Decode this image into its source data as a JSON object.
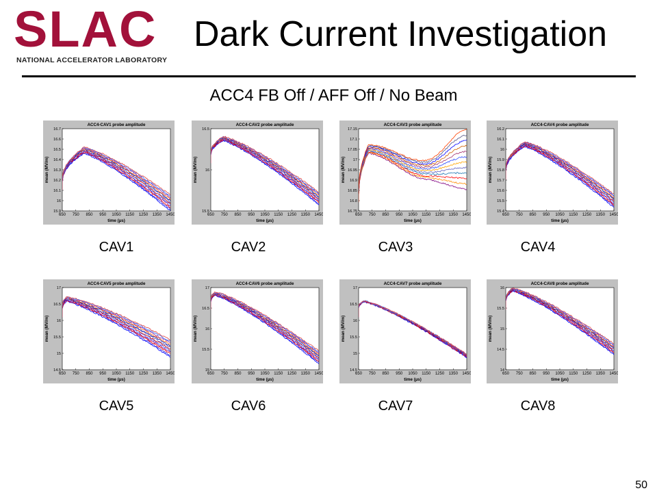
{
  "logo": {
    "word": "SLAC",
    "subtitle": "NATIONAL ACCELERATOR LABORATORY",
    "color": "#a2113a"
  },
  "slide": {
    "title": "Dark Current Investigation",
    "subtitle": "ACC4 FB Off / AFF Off / No Beam",
    "page_number": "50"
  },
  "colors": {
    "panel_bg": "#c0c0c0",
    "plot_bg": "#ffffff"
  },
  "chart_data": [
    {
      "type": "line",
      "title": "ACC4-CAV1 probe amplitude",
      "label": "CAV1",
      "xlabel": "time (µs)",
      "ylabel": "mean (MV/m)",
      "xlim": [
        650,
        1450
      ],
      "ylim": [
        15.9,
        16.7
      ],
      "xticks": [
        650,
        750,
        850,
        950,
        1050,
        1150,
        1250,
        1350,
        1450
      ],
      "yticks": [
        15.9,
        16,
        16.1,
        16.2,
        16.3,
        16.4,
        16.5,
        16.6,
        16.7
      ],
      "yticklabels": [
        "15.9",
        "16",
        "16.1",
        "16.2",
        "16.3",
        "16.4",
        "16.5",
        "16.6",
        "16.7"
      ],
      "start": 16.2,
      "peak_x": 810,
      "peak": 16.49,
      "end": 15.98,
      "spread": 0.06
    },
    {
      "type": "line",
      "title": "ACC4-CAV2 probe amplitude",
      "label": "CAV2",
      "xlabel": "time (µs)",
      "ylabel": "mean (MV/m)",
      "xlim": [
        650,
        1450
      ],
      "ylim": [
        15.5,
        16.5
      ],
      "xticks": [
        650,
        750,
        850,
        950,
        1050,
        1150,
        1250,
        1350,
        1450
      ],
      "yticks": [
        15.5,
        16,
        16.5
      ],
      "yticklabels": [
        "15.5",
        "16",
        "16.5"
      ],
      "start": 16.2,
      "peak_x": 740,
      "peak": 16.38,
      "end": 15.65,
      "spread": 0.06
    },
    {
      "type": "line",
      "title": "ACC4-CAV3 probe amplitude",
      "label": "CAV3",
      "xlabel": "time (µs)",
      "ylabel": "mean (MV/m)",
      "xlim": [
        650,
        1450
      ],
      "ylim": [
        16.75,
        17.15
      ],
      "xticks": [
        650,
        750,
        850,
        950,
        1050,
        1150,
        1250,
        1350,
        1450
      ],
      "yticks": [
        16.75,
        16.8,
        16.85,
        16.9,
        16.95,
        17,
        17.05,
        17.1,
        17.15
      ],
      "yticklabels": [
        "16.75",
        "16.8",
        "16.85",
        "16.9",
        "16.95",
        "17",
        "17.05",
        "17.1",
        "17.15"
      ],
      "start": 16.84,
      "peak_x": 720,
      "peak": 17.05,
      "dip_x": 1150,
      "dip": 16.95,
      "end": 17.0,
      "spread": 0.05
    },
    {
      "type": "line",
      "title": "ACC4-CAV4 probe amplitude",
      "label": "CAV4",
      "xlabel": "time (µs)",
      "ylabel": "mean (MV/m)",
      "xlim": [
        650,
        1450
      ],
      "ylim": [
        15.4,
        16.2
      ],
      "xticks": [
        650,
        750,
        850,
        950,
        1050,
        1150,
        1250,
        1350,
        1450
      ],
      "yticks": [
        15.4,
        15.5,
        15.6,
        15.7,
        15.8,
        15.9,
        16,
        16.1,
        16.2
      ],
      "yticklabels": [
        "15.4",
        "15.5",
        "15.6",
        "15.7",
        "15.8",
        "15.9",
        "16",
        "16.1",
        "16.2"
      ],
      "start": 15.8,
      "peak_x": 790,
      "peak": 16.05,
      "end": 15.5,
      "spread": 0.05
    },
    {
      "type": "line",
      "title": "ACC4-CAV5 probe amplitude",
      "label": "CAV5",
      "xlabel": "time (µs)",
      "ylabel": "mean (MV/m)",
      "xlim": [
        650,
        1450
      ],
      "ylim": [
        14.5,
        17
      ],
      "xticks": [
        650,
        750,
        850,
        950,
        1050,
        1150,
        1250,
        1350,
        1450
      ],
      "yticks": [
        14.5,
        15,
        15.5,
        16,
        16.5,
        17
      ],
      "yticklabels": [
        "14.5",
        "15",
        "15.5",
        "16",
        "16.5",
        "17"
      ],
      "start": 16.4,
      "peak_x": 680,
      "peak": 16.65,
      "end": 15.15,
      "spread": 0.2
    },
    {
      "type": "line",
      "title": "ACC4-CAV6 probe amplitude",
      "label": "CAV6",
      "xlabel": "time (µs)",
      "ylabel": "mean (MV/m)",
      "xlim": [
        650,
        1450
      ],
      "ylim": [
        15,
        17
      ],
      "xticks": [
        650,
        750,
        850,
        950,
        1050,
        1150,
        1250,
        1350,
        1450
      ],
      "yticks": [
        15,
        15.5,
        16,
        16.5,
        17
      ],
      "yticklabels": [
        "15",
        "15.5",
        "16",
        "16.5",
        "17"
      ],
      "start": 16.7,
      "peak_x": 680,
      "peak": 16.85,
      "end": 15.3,
      "spread": 0.12
    },
    {
      "type": "line",
      "title": "ACC4-CAV7 probe amplitude",
      "label": "CAV7",
      "xlabel": "time (µs)",
      "ylabel": "mean (MV/m)",
      "xlim": [
        650,
        1450
      ],
      "ylim": [
        14.5,
        17
      ],
      "xticks": [
        650,
        750,
        850,
        950,
        1050,
        1150,
        1250,
        1350,
        1450
      ],
      "yticks": [
        14.5,
        15,
        15.5,
        16,
        16.5,
        17
      ],
      "yticklabels": [
        "14.5",
        "15",
        "15.5",
        "16",
        "16.5",
        "17"
      ],
      "start": 16.4,
      "peak_x": 690,
      "peak": 16.58,
      "end": 14.92,
      "spread": 0.04
    },
    {
      "type": "line",
      "title": "ACC4-CAV8 probe amplitude",
      "label": "CAV8",
      "xlabel": "time (µs)",
      "ylabel": "mean (MV/m)",
      "xlim": [
        650,
        1450
      ],
      "ylim": [
        14,
        16
      ],
      "xticks": [
        650,
        750,
        850,
        950,
        1050,
        1150,
        1250,
        1350,
        1450
      ],
      "yticks": [
        14,
        14.5,
        15,
        15.5,
        16
      ],
      "yticklabels": [
        "14",
        "14.5",
        "15",
        "15.5",
        "16"
      ],
      "start": 15.7,
      "peak_x": 700,
      "peak": 15.95,
      "end": 14.5,
      "spread": 0.1
    }
  ]
}
